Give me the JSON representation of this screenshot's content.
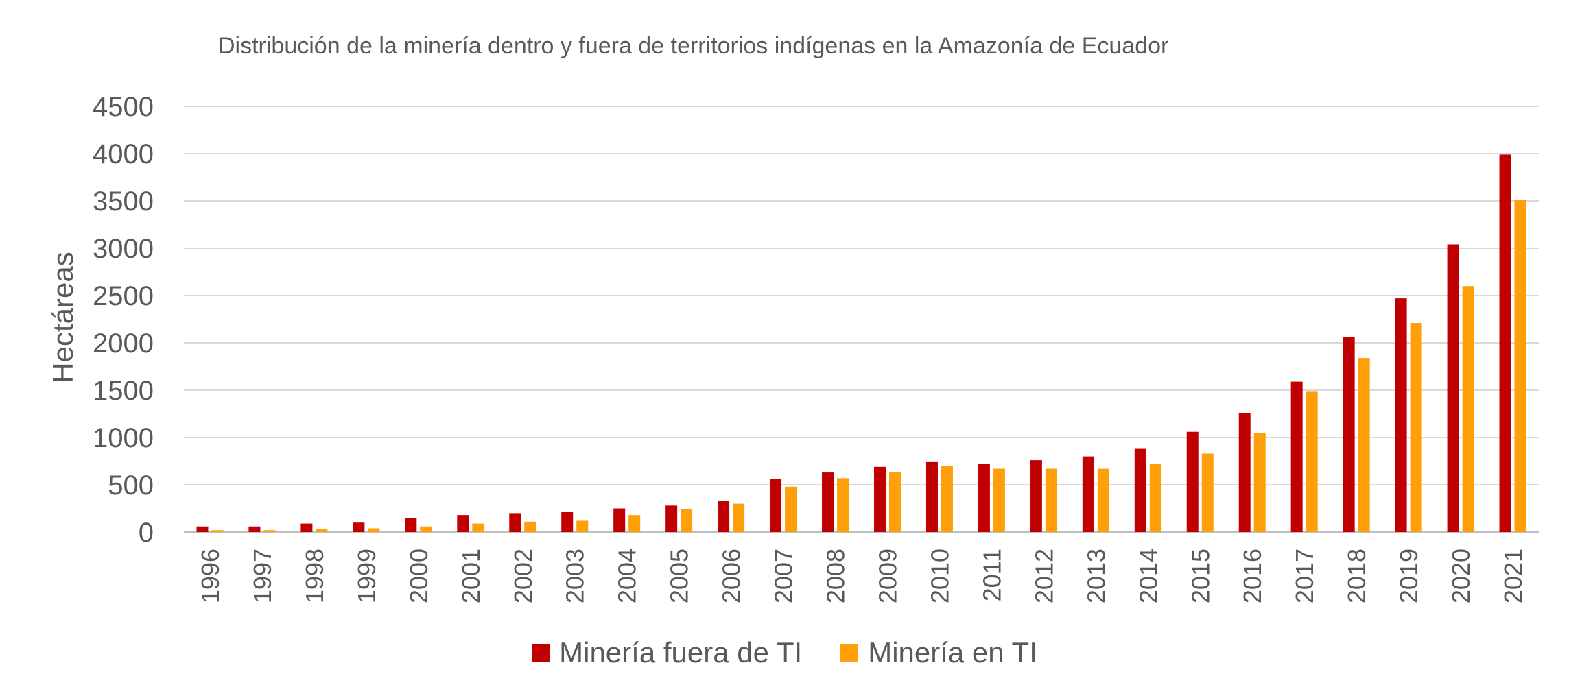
{
  "chart_data": {
    "type": "bar",
    "title": "Distribución de la minería dentro y fuera de territorios indígenas en la Amazonía de Ecuador",
    "xlabel": "",
    "ylabel": "Hectáreas",
    "ylim": [
      0,
      4500
    ],
    "yticks": [
      "0",
      "500",
      "1000",
      "1500",
      "2000",
      "2500",
      "3000",
      "3500",
      "4000",
      "4500"
    ],
    "grid": true,
    "legend_position": "bottom",
    "categories": [
      "1996",
      "1997",
      "1998",
      "1999",
      "2000",
      "2001",
      "2002",
      "2003",
      "2004",
      "2005",
      "2006",
      "2007",
      "2008",
      "2009",
      "2010",
      "2011",
      "2012",
      "2013",
      "2014",
      "2015",
      "2016",
      "2017",
      "2018",
      "2019",
      "2020",
      "2021"
    ],
    "series": [
      {
        "name": "Minería fuera de TI",
        "color": "#c00000",
        "values": [
          60,
          60,
          90,
          100,
          150,
          180,
          200,
          210,
          250,
          280,
          330,
          560,
          630,
          690,
          740,
          720,
          760,
          800,
          880,
          1060,
          1260,
          1590,
          2060,
          2470,
          3040,
          3990
        ]
      },
      {
        "name": "Minería en TI",
        "color": "#ffa00a",
        "values": [
          20,
          20,
          30,
          40,
          60,
          90,
          110,
          120,
          180,
          240,
          300,
          480,
          570,
          630,
          700,
          670,
          670,
          670,
          720,
          830,
          1050,
          1490,
          1840,
          2210,
          2600,
          3510
        ]
      }
    ]
  }
}
